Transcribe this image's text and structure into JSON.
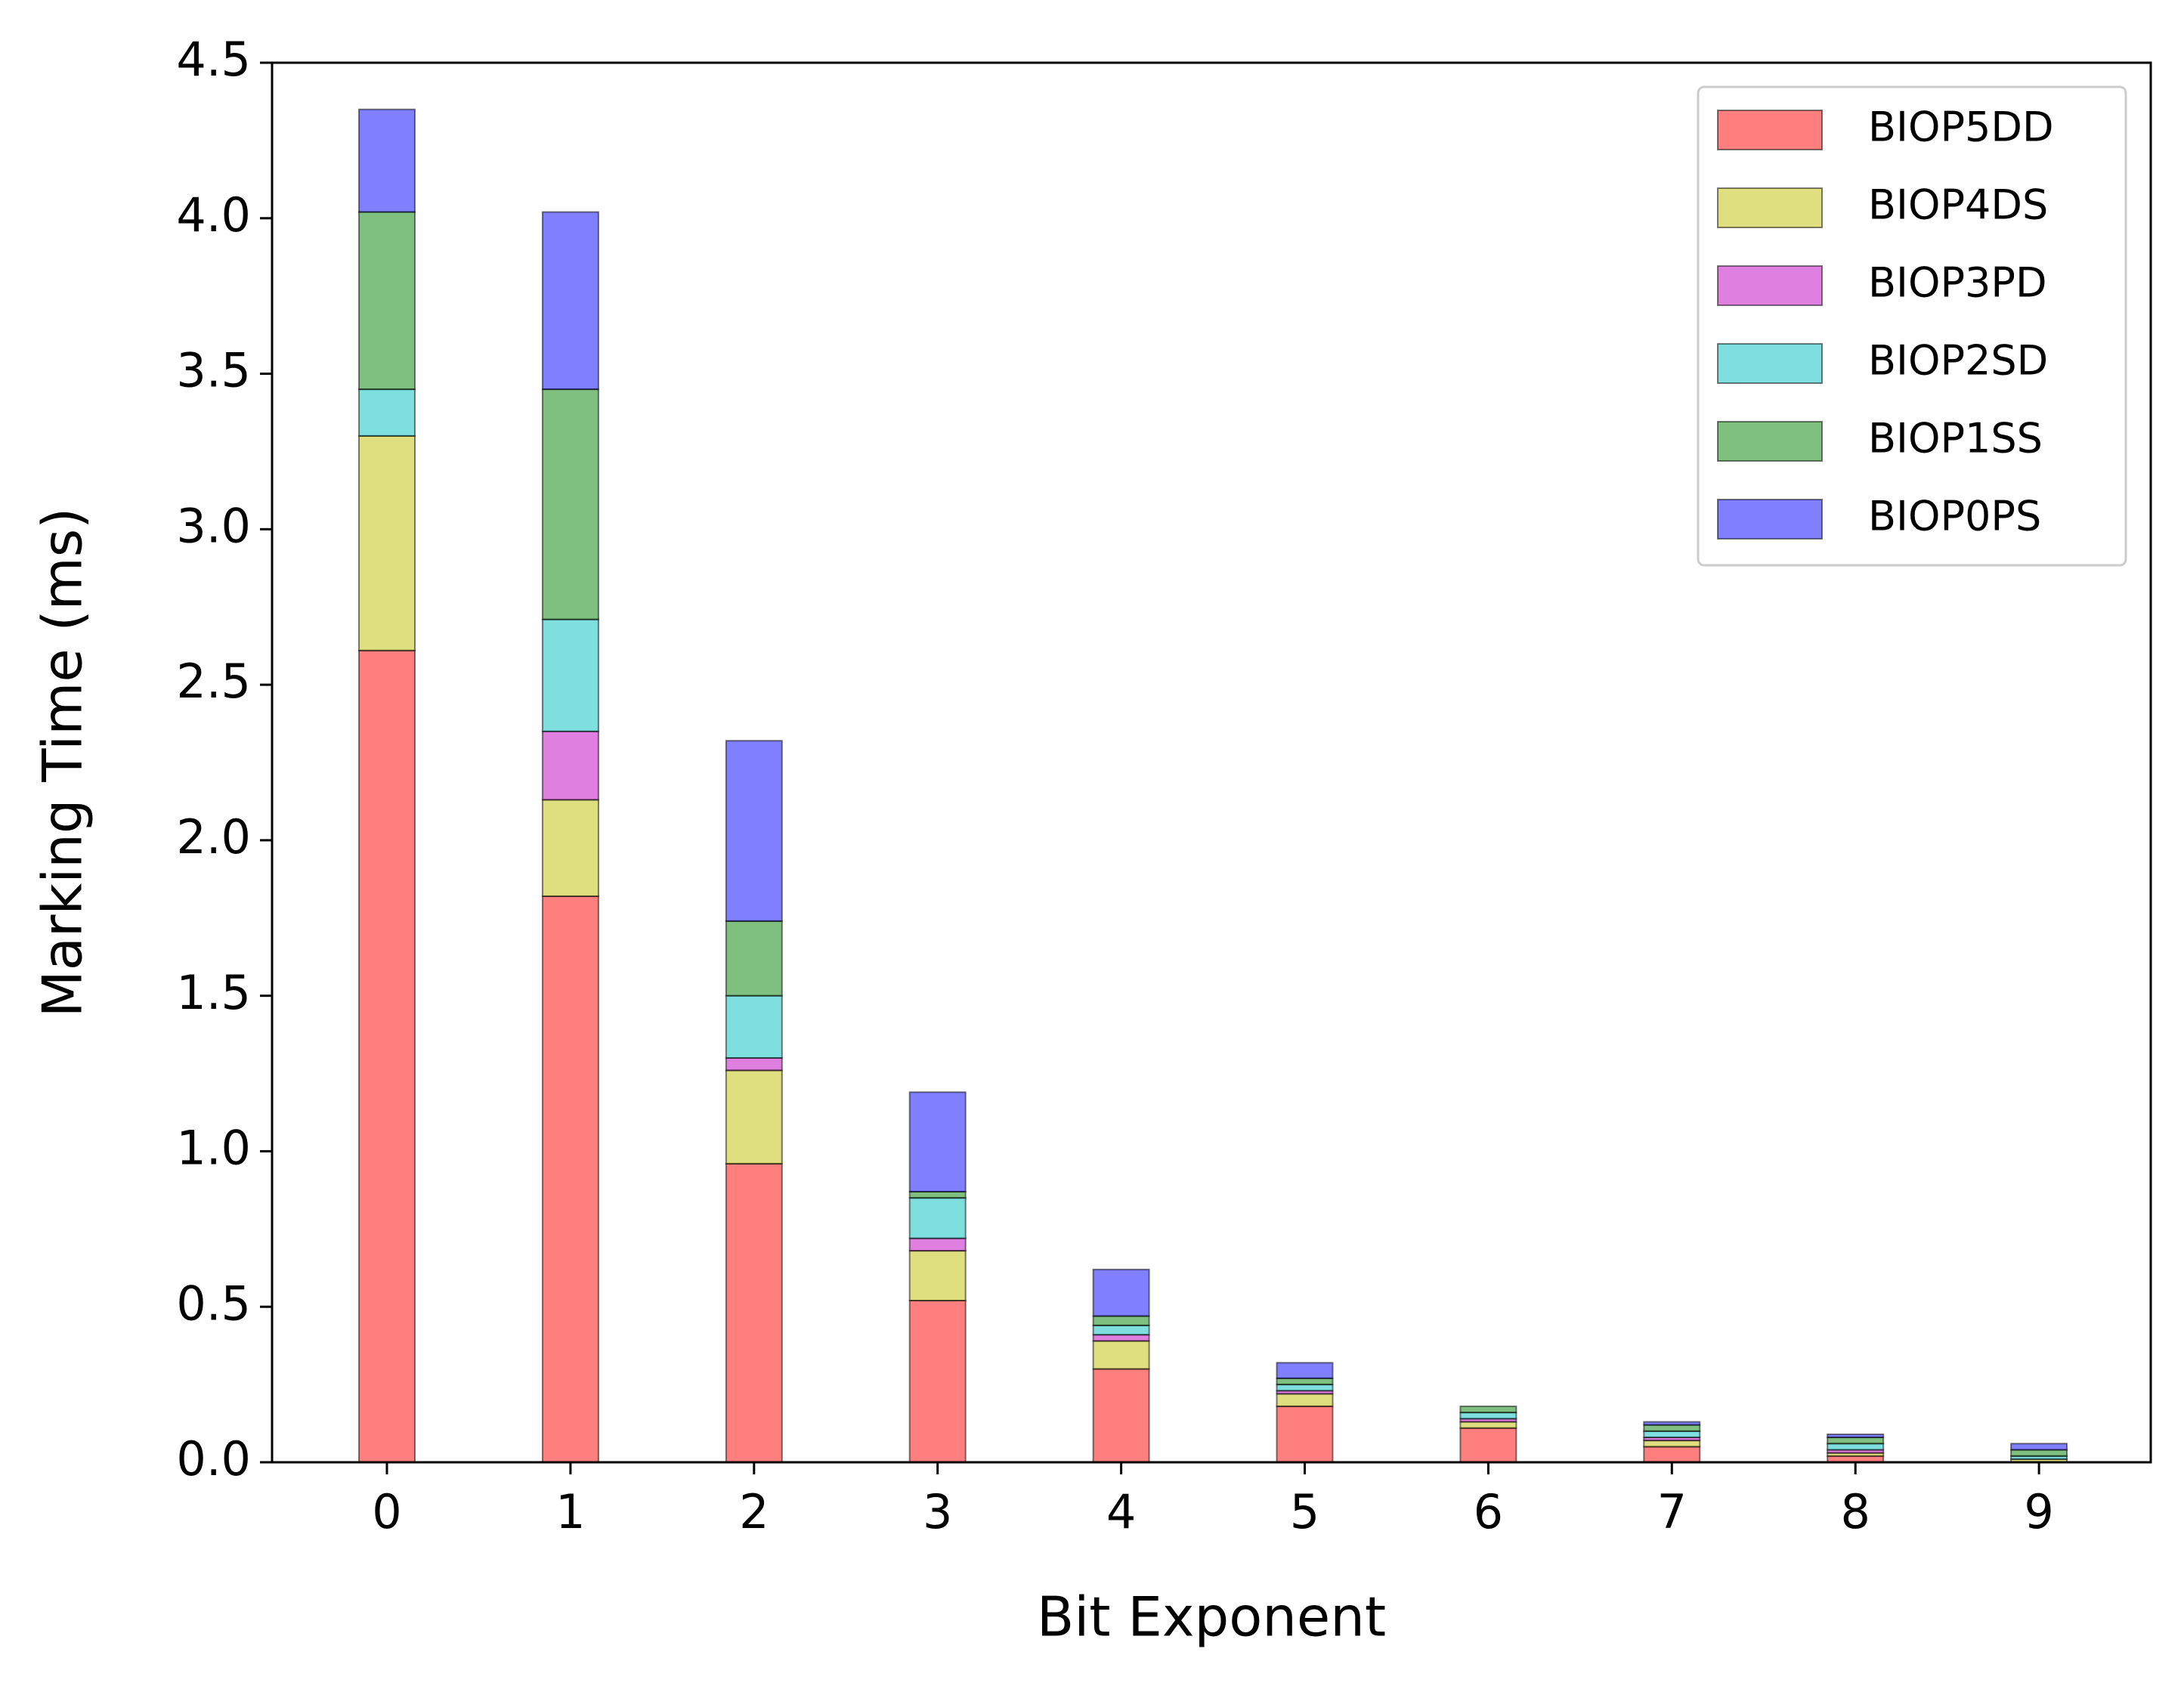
{
  "chart_data": {
    "type": "stacked-bar",
    "xlabel": "Bit Exponent",
    "ylabel": "Marking Time (ms)",
    "categories": [
      "0",
      "1",
      "2",
      "3",
      "4",
      "5",
      "6",
      "7",
      "8",
      "9"
    ],
    "series": [
      {
        "name": "BIOP5DD",
        "color": "#ff0000",
        "values": [
          2.61,
          1.82,
          0.96,
          0.52,
          0.3,
          0.18,
          0.11,
          0.05,
          0.02,
          0.0
        ]
      },
      {
        "name": "BIOP4DS",
        "color": "#bfbf00",
        "values": [
          0.69,
          0.31,
          0.3,
          0.16,
          0.09,
          0.04,
          0.02,
          0.02,
          0.01,
          0.01
        ]
      },
      {
        "name": "BIOP3PD",
        "color": "#bf00bf",
        "values": [
          0.0,
          0.22,
          0.04,
          0.04,
          0.02,
          0.01,
          0.01,
          0.01,
          0.01,
          0.0
        ]
      },
      {
        "name": "BIOP2SD",
        "color": "#00bfbf",
        "values": [
          0.15,
          0.36,
          0.2,
          0.13,
          0.03,
          0.02,
          0.02,
          0.02,
          0.02,
          0.01
        ]
      },
      {
        "name": "BIOP1SS",
        "color": "#008000",
        "values": [
          0.57,
          0.74,
          0.24,
          0.02,
          0.03,
          0.02,
          0.02,
          0.02,
          0.02,
          0.02
        ]
      },
      {
        "name": "BIOP0PS",
        "color": "#0000ff",
        "values": [
          0.33,
          0.57,
          0.58,
          0.32,
          0.15,
          0.05,
          0.0,
          0.01,
          0.01,
          0.02
        ]
      }
    ],
    "ylim": [
      0,
      4.5
    ],
    "yticks": [
      {
        "value": 0,
        "label": "0.0"
      },
      0.5,
      {
        "value": 1,
        "label": "1.0"
      },
      1.5,
      {
        "value": 2,
        "label": "2.0"
      },
      2.5,
      {
        "value": 3,
        "label": "3.0"
      },
      3.5,
      {
        "value": 4,
        "label": "4.0"
      },
      4.5
    ],
    "legend": "upper right"
  }
}
